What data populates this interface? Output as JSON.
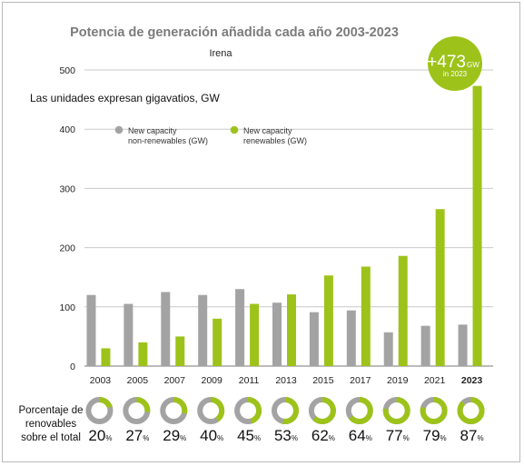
{
  "chart_data": {
    "type": "bar",
    "title": "Potencia de generación añadida cada año 2003-2023",
    "subtitle": "Irena",
    "unit_note": "Las unidades expresan gigavatios, GW",
    "categories": [
      "2003",
      "2005",
      "2007",
      "2009",
      "2011",
      "2013",
      "2015",
      "2017",
      "2019",
      "2021",
      "2023"
    ],
    "series": [
      {
        "name": "New capacity non-renewables (GW)",
        "legend_lines": [
          "New capacity",
          "non-renewables (GW)"
        ],
        "color": "#a3a3a3",
        "values": [
          120,
          105,
          125,
          120,
          130,
          107,
          91,
          94,
          57,
          68,
          70
        ]
      },
      {
        "name": "New capacity renewables (GW)",
        "legend_lines": [
          "New capacity",
          "renewables (GW)"
        ],
        "color": "#9dc31a",
        "values": [
          30,
          40,
          50,
          80,
          105,
          121,
          153,
          168,
          186,
          265,
          473
        ]
      }
    ],
    "ylim": [
      0,
      500
    ],
    "yticks": [
      "0",
      "100",
      "200",
      "300",
      "400",
      "500"
    ],
    "grid": true,
    "legend_position": "top-left",
    "callout": {
      "value": "+473",
      "unit": "GW",
      "caption": "in 2023"
    },
    "share_row": {
      "label_lines": [
        "Porcentaje de",
        "renovables",
        "sobre el total"
      ],
      "percentages": [
        20,
        27,
        29,
        40,
        45,
        53,
        62,
        64,
        77,
        79,
        87
      ],
      "suffix": "%"
    }
  }
}
